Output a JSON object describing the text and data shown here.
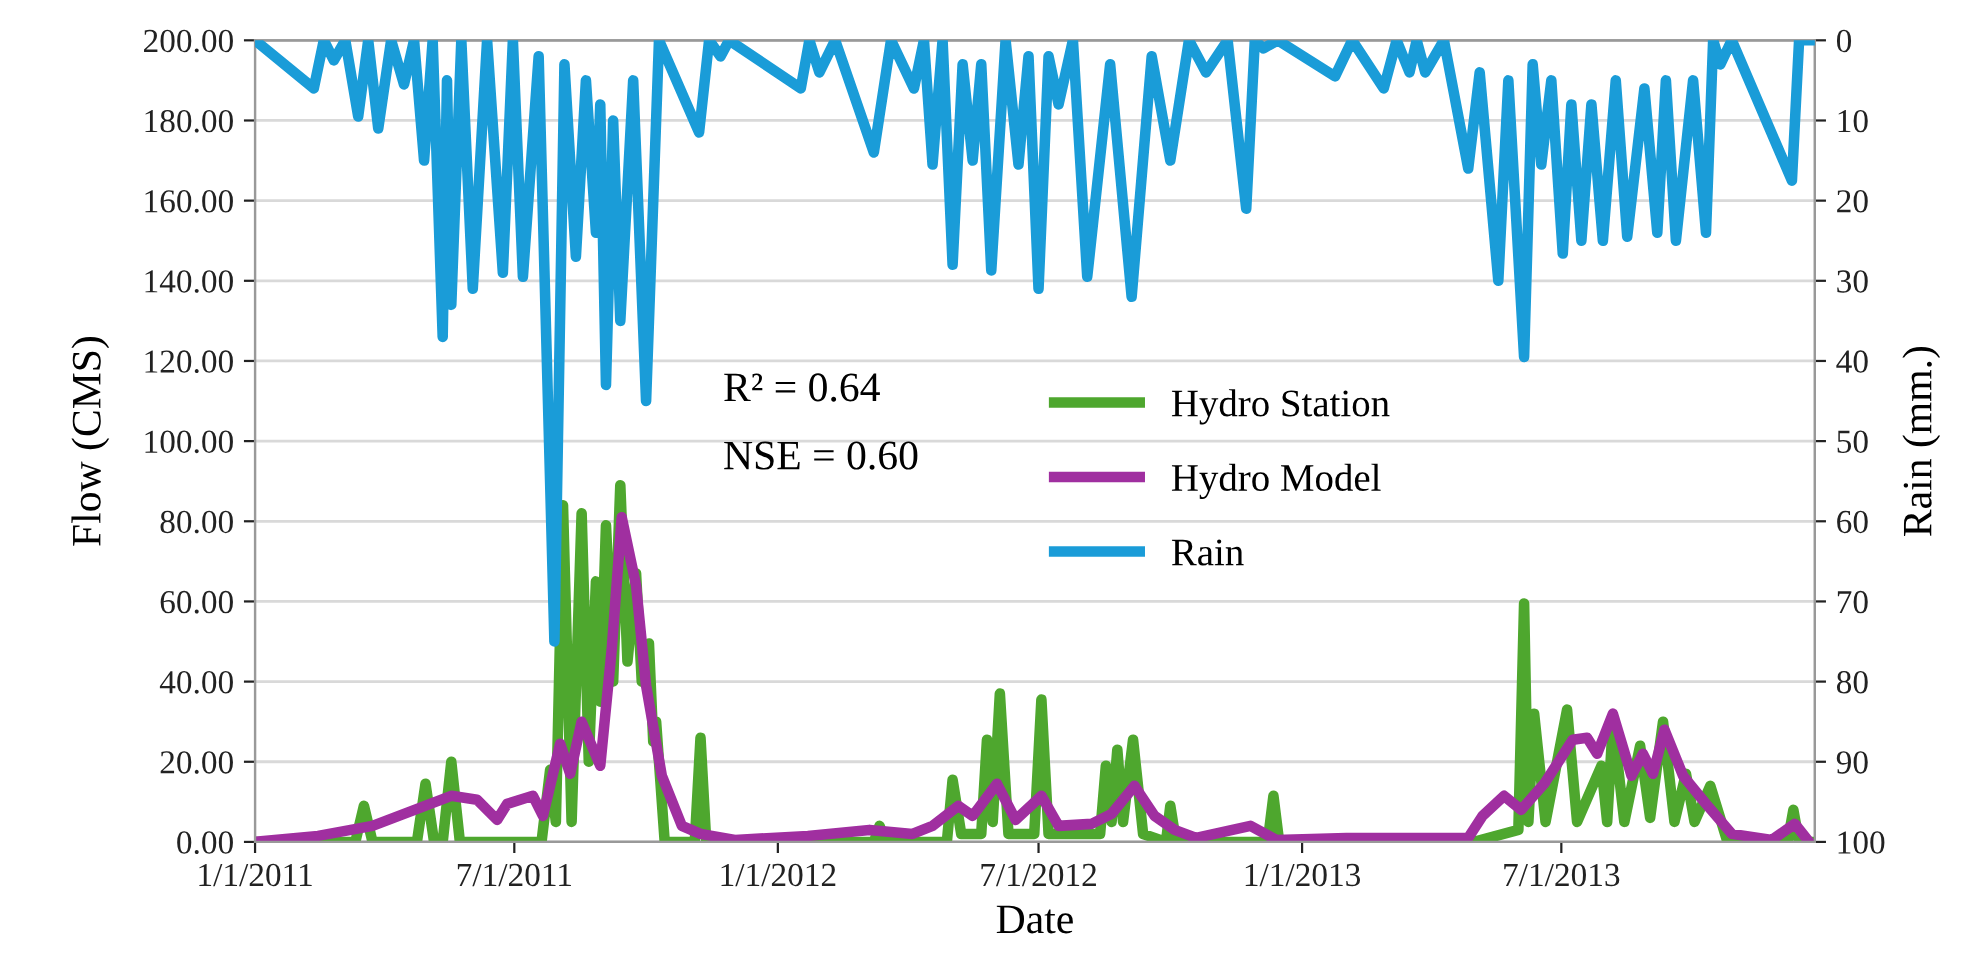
{
  "chart_data": {
    "type": "line",
    "xlabel": "Date",
    "ylabel": "Flow (CMS)",
    "y2label": "Rain (mm.)",
    "xlim": [
      "2011-01-01",
      "2013-12-25"
    ],
    "xticks": [
      {
        "value": "2011-01-01",
        "label": "1/1/2011"
      },
      {
        "value": "2011-07-01",
        "label": "7/1/2011"
      },
      {
        "value": "2012-01-01",
        "label": "1/1/2012"
      },
      {
        "value": "2012-07-01",
        "label": "7/1/2012"
      },
      {
        "value": "2013-01-01",
        "label": "1/1/2013"
      },
      {
        "value": "2013-07-01",
        "label": "7/1/2013"
      }
    ],
    "ylim": [
      0,
      200
    ],
    "yticks": [
      {
        "value": 0,
        "label": "0.00"
      },
      {
        "value": 20,
        "label": "20.00"
      },
      {
        "value": 40,
        "label": "40.00"
      },
      {
        "value": 60,
        "label": "60.00"
      },
      {
        "value": 80,
        "label": "80.00"
      },
      {
        "value": 100,
        "label": "100.00"
      },
      {
        "value": 120,
        "label": "120.00"
      },
      {
        "value": 140,
        "label": "140.00"
      },
      {
        "value": 160,
        "label": "160.00"
      },
      {
        "value": 180,
        "label": "180.00"
      },
      {
        "value": 200,
        "label": "200.00"
      }
    ],
    "y2lim": [
      100,
      0
    ],
    "y2ticks": [
      0,
      10,
      20,
      30,
      40,
      50,
      60,
      70,
      80,
      90,
      100
    ],
    "grid": "y",
    "legend": "center",
    "marker": "none",
    "line_style": "solid",
    "annotations": [
      "R² = 0.64",
      "NSE = 0.60"
    ],
    "series": [
      {
        "name": "Hydro Station",
        "color": "#4ea72e",
        "x": [
          "2011-01-01",
          "2011-03-12",
          "2011-03-18",
          "2011-03-24",
          "2011-04-24",
          "2011-04-30",
          "2011-05-06",
          "2011-05-12",
          "2011-05-18",
          "2011-05-24",
          "2011-07-20",
          "2011-07-26",
          "2011-07-30",
          "2011-08-04",
          "2011-08-10",
          "2011-08-17",
          "2011-08-22",
          "2011-08-27",
          "2011-08-30",
          "2011-09-03",
          "2011-09-08",
          "2011-09-13",
          "2011-09-18",
          "2011-09-24",
          "2011-09-28",
          "2011-10-03",
          "2011-10-06",
          "2011-10-08",
          "2011-10-14",
          "2011-11-04",
          "2011-11-08",
          "2011-11-12",
          "2012-03-08",
          "2012-03-12",
          "2012-03-16",
          "2012-04-28",
          "2012-05-02",
          "2012-05-08",
          "2012-05-22",
          "2012-05-26",
          "2012-05-30",
          "2012-06-04",
          "2012-06-10",
          "2012-06-28",
          "2012-07-03",
          "2012-07-08",
          "2012-08-13",
          "2012-08-17",
          "2012-08-21",
          "2012-08-25",
          "2012-08-29",
          "2012-09-05",
          "2012-09-12",
          "2012-09-28",
          "2012-10-01",
          "2012-10-05",
          "2012-12-08",
          "2012-12-12",
          "2012-12-16",
          "2013-05-01",
          "2013-06-01",
          "2013-06-05",
          "2013-06-08",
          "2013-06-12",
          "2013-06-20",
          "2013-07-05",
          "2013-07-12",
          "2013-07-29",
          "2013-08-02",
          "2013-08-06",
          "2013-08-14",
          "2013-08-25",
          "2013-09-01",
          "2013-09-10",
          "2013-09-18",
          "2013-09-26",
          "2013-10-02",
          "2013-10-13",
          "2013-10-25",
          "2013-12-06",
          "2013-12-10",
          "2013-12-14",
          "2013-12-25"
        ],
        "values": [
          0,
          0,
          9,
          0,
          0,
          14.5,
          0,
          0,
          20,
          0,
          0,
          18,
          5,
          84,
          5,
          82,
          20,
          65,
          35,
          79,
          40,
          89,
          45,
          67,
          40,
          49.5,
          25,
          30,
          0,
          0,
          26,
          0,
          0,
          4,
          0,
          0,
          15.5,
          2,
          2,
          25.5,
          5,
          37,
          2,
          2,
          35.5,
          2,
          2,
          19,
          5,
          23,
          5,
          25.5,
          2,
          0,
          9,
          0,
          0,
          11.5,
          0,
          0,
          3,
          59.5,
          5,
          32,
          5,
          33,
          5,
          19,
          5,
          30,
          5,
          24,
          6,
          30,
          5,
          17,
          5,
          14,
          0,
          0,
          8,
          0,
          0
        ]
      },
      {
        "name": "Hydro Model",
        "color": "#a02fa0",
        "x": [
          "2011-01-01",
          "2011-02-14",
          "2011-03-24",
          "2011-05-18",
          "2011-06-05",
          "2011-06-19",
          "2011-06-26",
          "2011-07-14",
          "2011-07-21",
          "2011-08-02",
          "2011-08-09",
          "2011-08-17",
          "2011-08-30",
          "2011-09-07",
          "2011-09-14",
          "2011-09-24",
          "2011-10-01",
          "2011-10-12",
          "2011-10-26",
          "2011-11-08",
          "2011-12-02",
          "2012-01-22",
          "2012-03-05",
          "2012-04-04",
          "2012-04-18",
          "2012-05-06",
          "2012-05-16",
          "2012-06-02",
          "2012-06-15",
          "2012-07-03",
          "2012-07-15",
          "2012-08-07",
          "2012-08-21",
          "2012-09-06",
          "2012-09-20",
          "2012-10-04",
          "2012-10-19",
          "2012-11-26",
          "2012-12-14",
          "2013-02-01",
          "2013-04-27",
          "2013-05-07",
          "2013-05-22",
          "2013-06-03",
          "2013-06-19",
          "2013-07-09",
          "2013-07-19",
          "2013-07-26",
          "2013-08-06",
          "2013-08-19",
          "2013-08-27",
          "2013-09-03",
          "2013-09-11",
          "2013-09-24",
          "2013-10-10",
          "2013-10-28",
          "2013-11-25",
          "2013-12-11",
          "2013-12-21"
        ],
        "values": [
          0,
          1.5,
          4,
          11.5,
          10.5,
          5.5,
          9.5,
          11.5,
          6.5,
          24.5,
          17,
          30,
          19,
          48,
          81,
          64,
          39,
          16.5,
          4,
          2,
          0.5,
          1.5,
          3,
          2,
          4,
          9,
          6.5,
          14.5,
          5.5,
          11.5,
          4,
          4.5,
          7,
          14,
          6.5,
          3,
          1,
          4,
          0.5,
          1,
          1,
          6.5,
          11.5,
          8,
          14.5,
          25.5,
          26,
          22,
          32,
          16.5,
          22,
          17,
          28,
          16.5,
          9.5,
          2,
          0.5,
          4.5,
          0
        ]
      },
      {
        "name": "Rain",
        "color": "#1a9cd8",
        "axis": "y2",
        "x": [
          "2011-01-01",
          "2011-02-11",
          "2011-02-18",
          "2011-02-25",
          "2011-03-05",
          "2011-03-14",
          "2011-03-21",
          "2011-03-28",
          "2011-04-06",
          "2011-04-15",
          "2011-04-22",
          "2011-04-29",
          "2011-05-05",
          "2011-05-12",
          "2011-05-15",
          "2011-05-18",
          "2011-05-25",
          "2011-06-02",
          "2011-06-12",
          "2011-06-23",
          "2011-06-30",
          "2011-07-07",
          "2011-07-18",
          "2011-07-29",
          "2011-08-05",
          "2011-08-13",
          "2011-08-20",
          "2011-08-27",
          "2011-08-30",
          "2011-09-03",
          "2011-09-08",
          "2011-09-13",
          "2011-09-22",
          "2011-10-01",
          "2011-10-10",
          "2011-11-07",
          "2011-11-14",
          "2011-11-22",
          "2011-11-28",
          "2012-01-17",
          "2012-01-23",
          "2012-01-30",
          "2012-02-10",
          "2012-03-08",
          "2012-03-20",
          "2012-04-05",
          "2012-04-12",
          "2012-04-18",
          "2012-04-25",
          "2012-05-02",
          "2012-05-09",
          "2012-05-16",
          "2012-05-22",
          "2012-05-29",
          "2012-06-08",
          "2012-06-17",
          "2012-06-24",
          "2012-07-01",
          "2012-07-08",
          "2012-07-15",
          "2012-07-25",
          "2012-08-04",
          "2012-08-20",
          "2012-09-04",
          "2012-09-18",
          "2012-10-01",
          "2012-10-14",
          "2012-10-26",
          "2012-11-10",
          "2012-11-23",
          "2012-11-29",
          "2012-12-05",
          "2012-12-15",
          "2013-01-24",
          "2013-02-05",
          "2013-02-27",
          "2013-03-08",
          "2013-03-17",
          "2013-03-22",
          "2013-03-28",
          "2013-04-10",
          "2013-04-27",
          "2013-05-05",
          "2013-05-18",
          "2013-05-25",
          "2013-06-05",
          "2013-06-11",
          "2013-06-17",
          "2013-06-24",
          "2013-07-02",
          "2013-07-08",
          "2013-07-15",
          "2013-07-22",
          "2013-07-30",
          "2013-08-08",
          "2013-08-16",
          "2013-08-28",
          "2013-09-06",
          "2013-09-12",
          "2013-09-19",
          "2013-10-01",
          "2013-10-10",
          "2013-10-15",
          "2013-10-20",
          "2013-10-28",
          "2013-12-09",
          "2013-12-14",
          "2013-12-25"
        ],
        "values": [
          0,
          6,
          0,
          2.5,
          0,
          9.5,
          0,
          11,
          0,
          5.5,
          0,
          15,
          0,
          37,
          5,
          33,
          0,
          31,
          0,
          29,
          0,
          29.5,
          2,
          75,
          3,
          27,
          5,
          24,
          8,
          43,
          10,
          35,
          5,
          45,
          0,
          11.5,
          0,
          2,
          0,
          6,
          0,
          4,
          0,
          14,
          0,
          6,
          0,
          15.5,
          0,
          28,
          3,
          15,
          3,
          28.7,
          0,
          15.5,
          2,
          31,
          2,
          8,
          0,
          29.5,
          3,
          32,
          2,
          15,
          0,
          4,
          0,
          21,
          0,
          1,
          0,
          4.5,
          0,
          6,
          0,
          4,
          0,
          4,
          0,
          16,
          4,
          30,
          5,
          39.5,
          3,
          15.5,
          5,
          26.6,
          8,
          25,
          8,
          25,
          5,
          24.5,
          6,
          24,
          5,
          25,
          5,
          24,
          0,
          3,
          0,
          17.5,
          0,
          0
        ]
      }
    ]
  }
}
